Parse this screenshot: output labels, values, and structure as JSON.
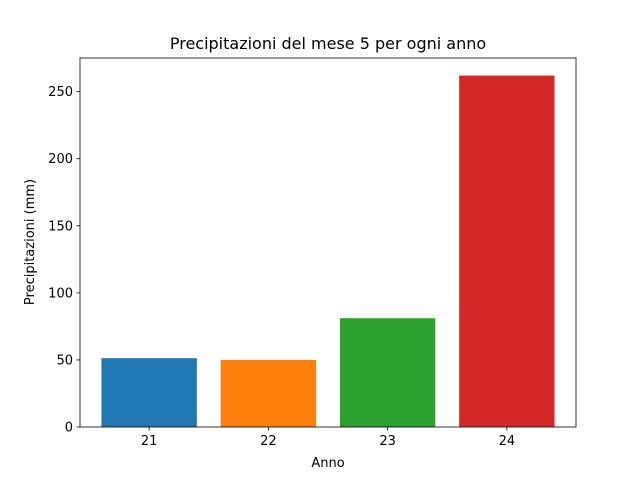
{
  "chart_data": {
    "type": "bar",
    "title": "Precipitazioni del mese 5 per ogni anno",
    "x_label": "Anno",
    "y_label": "Precipitazioni (mm)",
    "x": [
      21,
      22,
      23,
      24
    ],
    "values": [
      51.3,
      50,
      81.1,
      262
    ],
    "colors": [
      "#1f77b4",
      "#ff7f0e",
      "#2ca02c",
      "#d62728"
    ],
    "xlim": [
      20.42,
      24.58
    ],
    "xticks": [
      21,
      22,
      23,
      24
    ],
    "ylim": [
      0,
      275.1
    ],
    "yticks": [
      0,
      50,
      100,
      150,
      200,
      250
    ],
    "grid": false
  }
}
